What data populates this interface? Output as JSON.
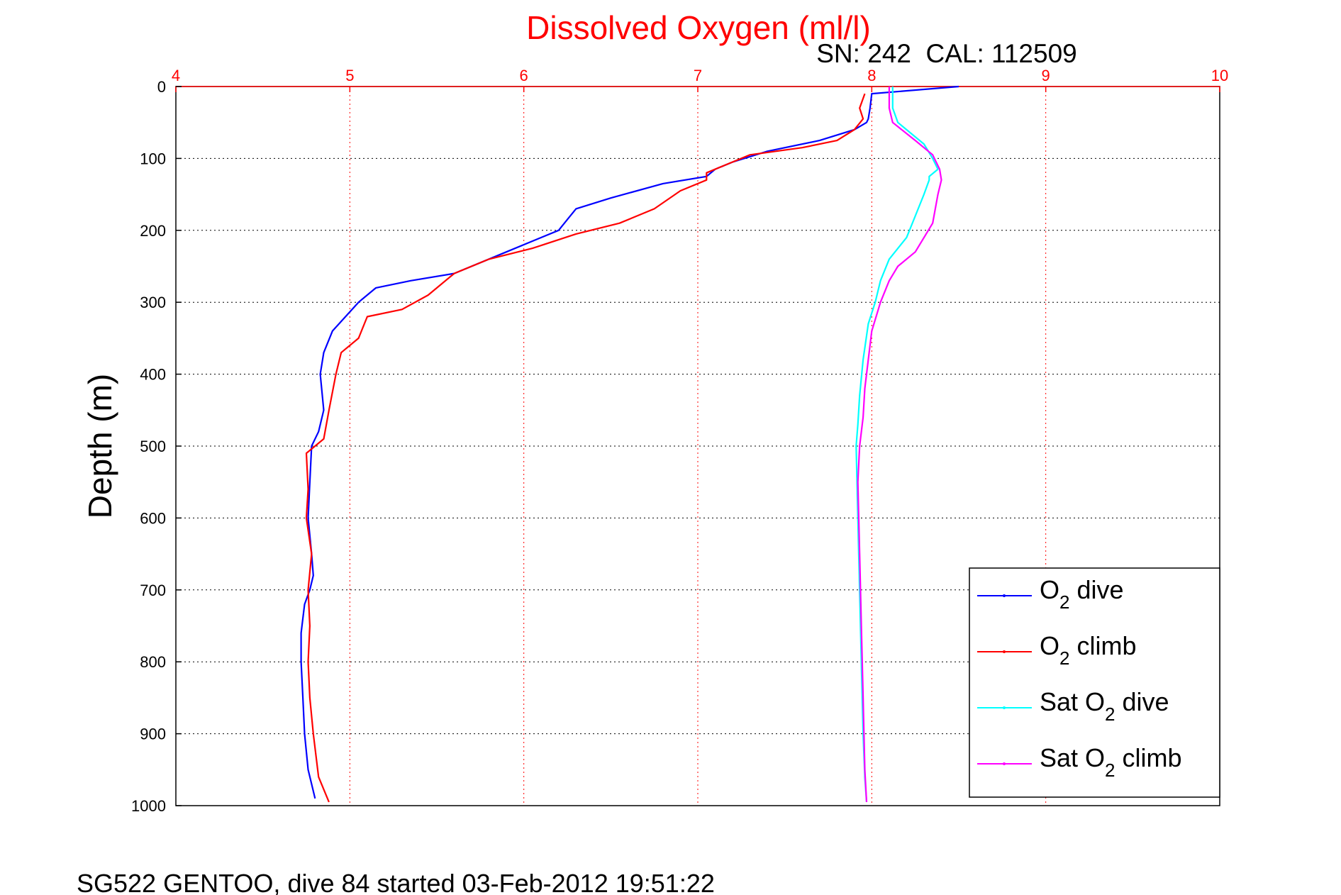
{
  "chart_data": {
    "type": "line",
    "title": "Dissolved Oxygen (ml/l)",
    "subtitle": "SN: 242  CAL: 112509",
    "xlabel": "",
    "ylabel": "Depth (m)",
    "xlim": [
      4,
      10
    ],
    "ylim": [
      0,
      1000
    ],
    "y_reversed": true,
    "x_axis_position": "top",
    "grid": true,
    "legend_position": "bottom-right",
    "xticks": [
      "4",
      "5",
      "6",
      "7",
      "8",
      "9",
      "10"
    ],
    "yticks": [
      "0",
      "100",
      "200",
      "300",
      "400",
      "500",
      "600",
      "700",
      "800",
      "900",
      "1000"
    ],
    "footer": "SG522 GENTOO, dive 84 started 03-Feb-2012 19:51:22",
    "series": [
      {
        "name": "O2 dive",
        "legend_main": "O",
        "legend_sub": "2",
        "legend_rest": " dive",
        "color": "#0000ff",
        "x": [
          8.5,
          8.0,
          7.99,
          7.98,
          7.97,
          7.9,
          7.7,
          7.4,
          7.2,
          7.1,
          7.05,
          6.8,
          6.5,
          6.3,
          6.25,
          6.2,
          6.1,
          5.9,
          5.6,
          5.35,
          5.15,
          5.05,
          4.9,
          4.85,
          4.83,
          4.85,
          4.82,
          4.78,
          4.77,
          4.76,
          4.78,
          4.79,
          4.77,
          4.74,
          4.72,
          4.72,
          4.73,
          4.74,
          4.76,
          4.8
        ],
        "y": [
          0,
          10,
          30,
          45,
          50,
          60,
          75,
          90,
          105,
          115,
          125,
          135,
          155,
          170,
          185,
          200,
          210,
          230,
          260,
          270,
          280,
          300,
          340,
          370,
          400,
          450,
          480,
          500,
          550,
          600,
          650,
          680,
          700,
          720,
          760,
          800,
          850,
          900,
          950,
          990
        ]
      },
      {
        "name": "O2 climb",
        "legend_main": "O",
        "legend_sub": "2",
        "legend_rest": " climb",
        "color": "#ff0000",
        "x": [
          7.96,
          7.93,
          7.95,
          7.9,
          7.8,
          7.6,
          7.3,
          7.15,
          7.05,
          7.05,
          6.9,
          6.75,
          6.55,
          6.3,
          6.05,
          5.8,
          5.6,
          5.45,
          5.3,
          5.1,
          5.05,
          4.95,
          4.92,
          4.88,
          4.85,
          4.75,
          4.76,
          4.75,
          4.78,
          4.76,
          4.77,
          4.76,
          4.77,
          4.79,
          4.82,
          4.88
        ],
        "y": [
          10,
          30,
          45,
          60,
          75,
          85,
          95,
          110,
          120,
          130,
          145,
          170,
          190,
          205,
          225,
          240,
          260,
          290,
          310,
          320,
          350,
          370,
          400,
          450,
          490,
          510,
          560,
          600,
          650,
          700,
          750,
          800,
          850,
          900,
          960,
          995
        ]
      },
      {
        "name": "Sat O2 dive",
        "legend_main": "Sat O",
        "legend_sub": "2",
        "legend_rest": " dive",
        "color": "#00ffff",
        "x": [
          8.12,
          8.12,
          8.15,
          8.3,
          8.35,
          8.38,
          8.33,
          8.33,
          8.3,
          8.25,
          8.2,
          8.1,
          8.05,
          8.02,
          7.98,
          7.95,
          7.93,
          7.92,
          7.91,
          7.92,
          7.93,
          7.94,
          7.95,
          7.96,
          7.97
        ],
        "y": [
          0,
          30,
          50,
          80,
          100,
          115,
          125,
          130,
          150,
          180,
          210,
          240,
          270,
          300,
          330,
          380,
          430,
          470,
          500,
          600,
          700,
          800,
          900,
          960,
          995
        ]
      },
      {
        "name": "Sat O2 climb",
        "legend_main": "Sat O",
        "legend_sub": "2",
        "legend_rest": " climb",
        "color": "#ff00ff",
        "x": [
          8.1,
          8.1,
          8.12,
          8.25,
          8.35,
          8.39,
          8.4,
          8.38,
          8.35,
          8.25,
          8.15,
          8.1,
          8.05,
          8.0,
          7.98,
          7.96,
          7.95,
          7.93,
          7.92,
          7.93,
          7.94,
          7.95,
          7.96,
          7.97
        ],
        "y": [
          0,
          30,
          50,
          75,
          95,
          115,
          130,
          150,
          190,
          230,
          250,
          270,
          300,
          340,
          380,
          420,
          460,
          500,
          550,
          650,
          750,
          850,
          950,
          995
        ]
      }
    ]
  }
}
